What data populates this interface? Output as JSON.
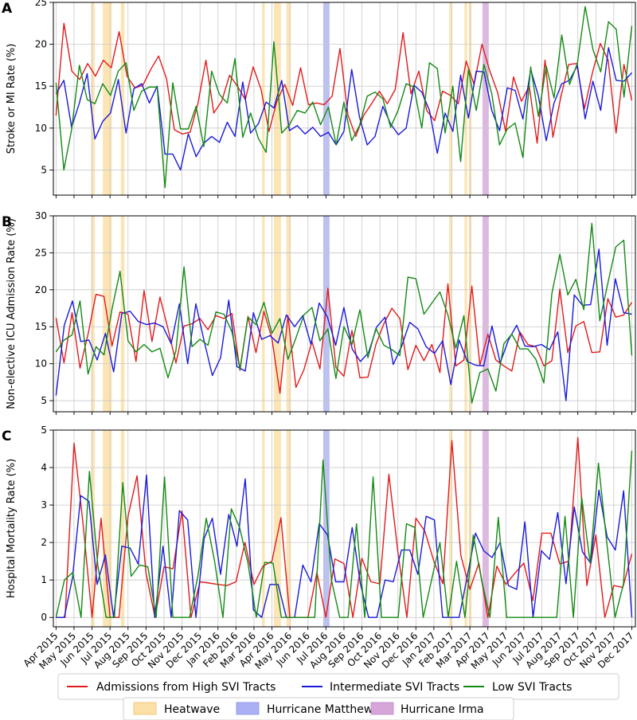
{
  "colors": {
    "high": "#e31a1c",
    "intermediate": "#1a1adb",
    "low": "#138a13",
    "heatwave": "#fbe0a8",
    "matthew": "#aab0f3",
    "irma": "#d6a6d9",
    "grid": "#c8c8c8"
  },
  "x_ticks": [
    "Apr 2015",
    "May 2015",
    "Jun 2015",
    "Jul 2015",
    "Aug 2015",
    "Sep 2015",
    "Oct 2015",
    "Nov 2015",
    "Dec 2015",
    "Jan 2016",
    "Feb 2016",
    "Mar 2016",
    "Apr 2016",
    "May 2016",
    "Jun 2016",
    "Jul 2016",
    "Aug 2016",
    "Sep 2016",
    "Oct 2016",
    "Nov 2016",
    "Dec 2016",
    "Jan 2017",
    "Feb 2017",
    "Mar 2017",
    "Apr 2017",
    "May 2017",
    "Jun 2017",
    "Jul 2017",
    "Aug 2017",
    "Sep 2017",
    "Oct 2017",
    "Nov 2017",
    "Dec 2017"
  ],
  "events": {
    "heatwave": [
      [
        1.95,
        2.15
      ],
      [
        2.6,
        3.1
      ],
      [
        3.6,
        3.8
      ],
      [
        11.45,
        11.6
      ],
      [
        12.1,
        12.5
      ],
      [
        12.8,
        13.05
      ],
      [
        21.85,
        22.0
      ],
      [
        22.7,
        22.85
      ],
      [
        22.95,
        23.1
      ]
    ],
    "matthew": [
      [
        14.85,
        15.2
      ]
    ],
    "irma": [
      [
        23.7,
        24.05
      ]
    ]
  },
  "chart_data": [
    {
      "type": "line",
      "panel": "A",
      "ylabel": "Stroke or MI Rate (%)",
      "ylim": [
        2,
        25
      ],
      "yticks": [
        5,
        10,
        15,
        20,
        25
      ],
      "grid": true,
      "series": [
        {
          "name": "Admissions from High SVI Tracts",
          "values": [
            11.5,
            22.5,
            16.8,
            15.8,
            17.7,
            16.2,
            18.1,
            17.2,
            21.5,
            16.2,
            14.8,
            15.1,
            17.0,
            18.6,
            15.9,
            9.8,
            9.3,
            9.5,
            13.0,
            18.1,
            11.8,
            13.2,
            16.3,
            15.0,
            13.4,
            17.3,
            14.6,
            9.6,
            13.2,
            15.2,
            12.7,
            17.2,
            12.8,
            13.0,
            12.8,
            13.8,
            19.5,
            11.6,
            9.0,
            11.5,
            12.9,
            14.4,
            12.9,
            14.6,
            21.4,
            14.1,
            16.8,
            12.1,
            10.9,
            14.4,
            13.9,
            12.9,
            18.0,
            15.2,
            20.0,
            16.8,
            14.2,
            9.6,
            16.1,
            13.2,
            15.0,
            8.2,
            18.1,
            8.9,
            13.7,
            17.6,
            17.7,
            12.3,
            16.6,
            20.1,
            18.1,
            9.4,
            17.6,
            13.3
          ]
        },
        {
          "name": "Intermediate SVI Tracts",
          "values": [
            14.1,
            15.7,
            10.1,
            13.0,
            16.5,
            8.7,
            10.8,
            11.8,
            15.8,
            9.4,
            14.7,
            15.3,
            13.0,
            15.0,
            6.9,
            6.9,
            5.0,
            9.3,
            6.6,
            8.2,
            9.0,
            8.3,
            10.7,
            9.0,
            15.5,
            9.4,
            10.5,
            13.1,
            12.4,
            15.7,
            9.7,
            10.3,
            9.3,
            10.1,
            9.0,
            9.5,
            8.0,
            9.6,
            17.0,
            11.3,
            8.0,
            9.0,
            12.6,
            10.5,
            9.2,
            10.0,
            15.1,
            14.3,
            12.1,
            7.0,
            11.8,
            9.6,
            16.3,
            11.2,
            16.8,
            16.7,
            12.1,
            9.7,
            14.8,
            14.5,
            11.1,
            17.0,
            13.8,
            8.5,
            13.0,
            15.3,
            15.7,
            17.5,
            11.1,
            15.6,
            12.1,
            19.6,
            15.7,
            15.6,
            16.6
          ]
        },
        {
          "name": "Low SVI Tracts",
          "values": [
            15.4,
            5.0,
            9.8,
            17.5,
            13.4,
            12.9,
            15.3,
            13.9,
            16.8,
            17.8,
            12.1,
            14.4,
            14.9,
            14.9,
            2.9,
            15.4,
            9.9,
            9.9,
            12.6,
            7.8,
            16.8,
            14.0,
            13.0,
            18.3,
            8.9,
            11.8,
            8.8,
            7.1,
            20.3,
            9.4,
            10.4,
            12.1,
            11.8,
            13.1,
            10.4,
            12.5,
            8.0,
            13.1,
            8.5,
            10.3,
            13.8,
            14.3,
            13.5,
            10.1,
            12.2,
            15.3,
            14.9,
            10.0,
            17.8,
            17.1,
            9.4,
            15.0,
            6.0,
            17.0,
            12.1,
            17.6,
            14.1,
            8.0,
            9.9,
            10.6,
            6.5,
            17.3,
            11.4,
            17.4,
            13.6,
            21.1,
            15.2,
            17.7,
            24.5,
            19.4,
            16.7,
            22.7,
            21.8,
            13.7,
            22.2
          ]
        }
      ]
    },
    {
      "type": "line",
      "panel": "B",
      "ylabel": "Non-elective ICU Admission Rate (%)",
      "ylim": [
        3.5,
        30
      ],
      "yticks": [
        5,
        10,
        15,
        20,
        25,
        30
      ],
      "grid": true,
      "series": [
        {
          "name": "Admissions from High SVI Tracts",
          "values": [
            16.2,
            10.1,
            16.9,
            9.4,
            14.0,
            19.4,
            19.1,
            12.4,
            17.0,
            16.7,
            10.3,
            19.9,
            13.0,
            19.0,
            14.7,
            10.1,
            15.1,
            15.4,
            16.1,
            14.6,
            16.5,
            16.1,
            16.8,
            9.1,
            16.4,
            11.5,
            17.1,
            13.4,
            6.0,
            16.5,
            6.8,
            9.2,
            13.0,
            9.3,
            20.2,
            9.5,
            8.3,
            14.5,
            8.1,
            8.2,
            12.6,
            15.4,
            17.5,
            16.1,
            9.2,
            12.5,
            10.4,
            12.6,
            8.8,
            20.8,
            9.7,
            10.5,
            20.5,
            9.8,
            14.0,
            10.5,
            9.7,
            9.0,
            14.3,
            12.6,
            12.3,
            9.7,
            10.4,
            20.1,
            11.5,
            15.1,
            15.7,
            11.5,
            11.6,
            18.8,
            16.3,
            16.6,
            18.3
          ]
        },
        {
          "name": "Intermediate SVI Tracts",
          "values": [
            5.7,
            15.2,
            18.5,
            13.0,
            13.2,
            10.5,
            14.1,
            8.9,
            16.8,
            17.1,
            15.7,
            15.3,
            15.5,
            15.0,
            12.7,
            18.1,
            10.0,
            18.1,
            13.1,
            8.4,
            10.8,
            18.6,
            9.6,
            9.0,
            16.9,
            13.3,
            13.8,
            12.8,
            16.6,
            15.0,
            16.5,
            12.6,
            18.2,
            16.3,
            12.5,
            17.6,
            12.0,
            10.3,
            11.5,
            15.0,
            16.3,
            9.9,
            12.3,
            15.6,
            14.7,
            12.3,
            11.4,
            13.1,
            7.2,
            13.2,
            10.3,
            9.8,
            9.7,
            15.1,
            10.1,
            13.2,
            15.2,
            12.4,
            12.3,
            12.6,
            11.9,
            14.3,
            5.0,
            19.3,
            17.9,
            18.0,
            25.5,
            12.5,
            21.5,
            16.9,
            16.7
          ]
        },
        {
          "name": "Low SVI Tracts",
          "values": [
            11.6,
            13.2,
            13.9,
            18.5,
            8.6,
            12.3,
            11.2,
            17.4,
            22.5,
            13.1,
            11.6,
            12.6,
            11.6,
            12.1,
            8.1,
            11.8,
            23.1,
            12.3,
            13.3,
            12.5,
            17.0,
            16.7,
            14.3,
            9.3,
            16.3,
            15.3,
            18.3,
            14.1,
            16.1,
            10.6,
            13.5,
            16.6,
            17.6,
            13.1,
            14.7,
            8.0,
            15.0,
            12.6,
            17.3,
            10.8,
            14.8,
            12.5,
            11.9,
            11.1,
            21.7,
            21.5,
            16.7,
            18.2,
            19.7,
            16.6,
            12.1,
            16.5,
            4.7,
            8.8,
            9.3,
            6.3,
            12.7,
            14.0,
            12.0,
            12.0,
            10.6,
            7.4,
            19.5,
            24.8,
            19.3,
            21.4,
            17.3,
            29.0,
            15.8,
            20.9,
            25.8,
            26.7,
            11.1
          ]
        }
      ]
    },
    {
      "type": "line",
      "panel": "C",
      "ylabel": "Hospital Mortality Rate (%)",
      "ylim": [
        -0.25,
        5.0
      ],
      "yticks": [
        0,
        1,
        2,
        3,
        4,
        5
      ],
      "grid": true,
      "series": [
        {
          "name": "Admissions from High SVI Tracts",
          "values": [
            0.0,
            0.0,
            4.65,
            2.5,
            0.0,
            2.65,
            0.0,
            0.0,
            2.7,
            3.78,
            1.18,
            0.0,
            1.35,
            1.3,
            2.84,
            0.0,
            0.95,
            0.92,
            0.88,
            0.85,
            0.95,
            2.0,
            0.88,
            1.37,
            1.5,
            2.66,
            0.0,
            0.0,
            0.0,
            1.2,
            0.0,
            1.56,
            1.44,
            0.0,
            1.58,
            0.95,
            0.9,
            3.82,
            1.75,
            0.0,
            2.65,
            2.3,
            1.5,
            0.9,
            4.72,
            1.65,
            0.75,
            1.45,
            0.0,
            1.37,
            0.88,
            1.18,
            1.45,
            0.45,
            2.25,
            2.25,
            1.43,
            1.5,
            4.8,
            0.85,
            2.2,
            0.0,
            0.85,
            0.8,
            1.7
          ]
        },
        {
          "name": "Intermediate SVI Tracts",
          "values": [
            0.0,
            0.0,
            1.05,
            3.25,
            3.1,
            0.88,
            1.67,
            0.0,
            1.9,
            1.85,
            1.42,
            3.8,
            0.0,
            1.9,
            0.0,
            2.85,
            2.6,
            0.0,
            2.1,
            2.65,
            1.15,
            2.75,
            1.9,
            3.7,
            0.2,
            0.0,
            0.88,
            0.88,
            0.0,
            0.0,
            1.4,
            0.95,
            2.5,
            2.2,
            0.95,
            0.95,
            2.4,
            0.9,
            0.0,
            0.0,
            1.0,
            0.95,
            1.8,
            1.8,
            1.15,
            2.7,
            2.6,
            0.0,
            0.0,
            0.0,
            1.1,
            2.25,
            1.78,
            1.6,
            2.0,
            0.85,
            0.75,
            2.55,
            0.0,
            1.78,
            1.55,
            2.8,
            0.9,
            2.95,
            1.75,
            1.45,
            3.4,
            2.15,
            1.8,
            3.38,
            0.0
          ]
        },
        {
          "name": "Low SVI Tracts",
          "values": [
            0.0,
            1.0,
            1.2,
            0.0,
            3.9,
            1.4,
            0.0,
            0.0,
            3.6,
            1.1,
            1.4,
            1.35,
            0.0,
            3.75,
            0.0,
            0.0,
            0.0,
            1.1,
            2.65,
            1.5,
            0.0,
            2.9,
            2.4,
            1.45,
            0.0,
            1.47,
            1.45,
            0.0,
            0.0,
            0.0,
            0.0,
            0.0,
            4.2,
            1.0,
            0.0,
            0.0,
            2.5,
            0.0,
            3.75,
            0.0,
            0.0,
            0.0,
            2.5,
            2.4,
            0.0,
            1.0,
            2.0,
            0.0,
            1.5,
            0.0,
            2.2,
            1.0,
            0.0,
            2.67,
            0.0,
            0.0,
            0.0,
            0.0,
            0.0,
            0.0,
            0.0,
            2.7,
            0.0,
            3.2,
            1.45,
            4.12,
            2.0,
            0.0,
            0.9,
            4.45
          ]
        }
      ]
    }
  ],
  "panels": [
    {
      "letter": "A",
      "ylabel": "Stroke or MI Rate (%)"
    },
    {
      "letter": "B",
      "ylabel": "Non-elective ICU Admission Rate (%)"
    },
    {
      "letter": "C",
      "ylabel": "Hospital Mortality Rate (%)"
    }
  ],
  "legend": {
    "series": [
      {
        "label": "Admissions from High SVI Tracts",
        "color": "#e31a1c"
      },
      {
        "label": "Intermediate SVI Tracts",
        "color": "#1a1adb"
      },
      {
        "label": "Low SVI Tracts",
        "color": "#138a13"
      }
    ],
    "events": [
      {
        "label": "Heatwave",
        "color": "#fbe0a8"
      },
      {
        "label": "Hurricane Matthew",
        "color": "#aab0f3"
      },
      {
        "label": "Hurricane Irma",
        "color": "#d6a6d9"
      }
    ]
  }
}
